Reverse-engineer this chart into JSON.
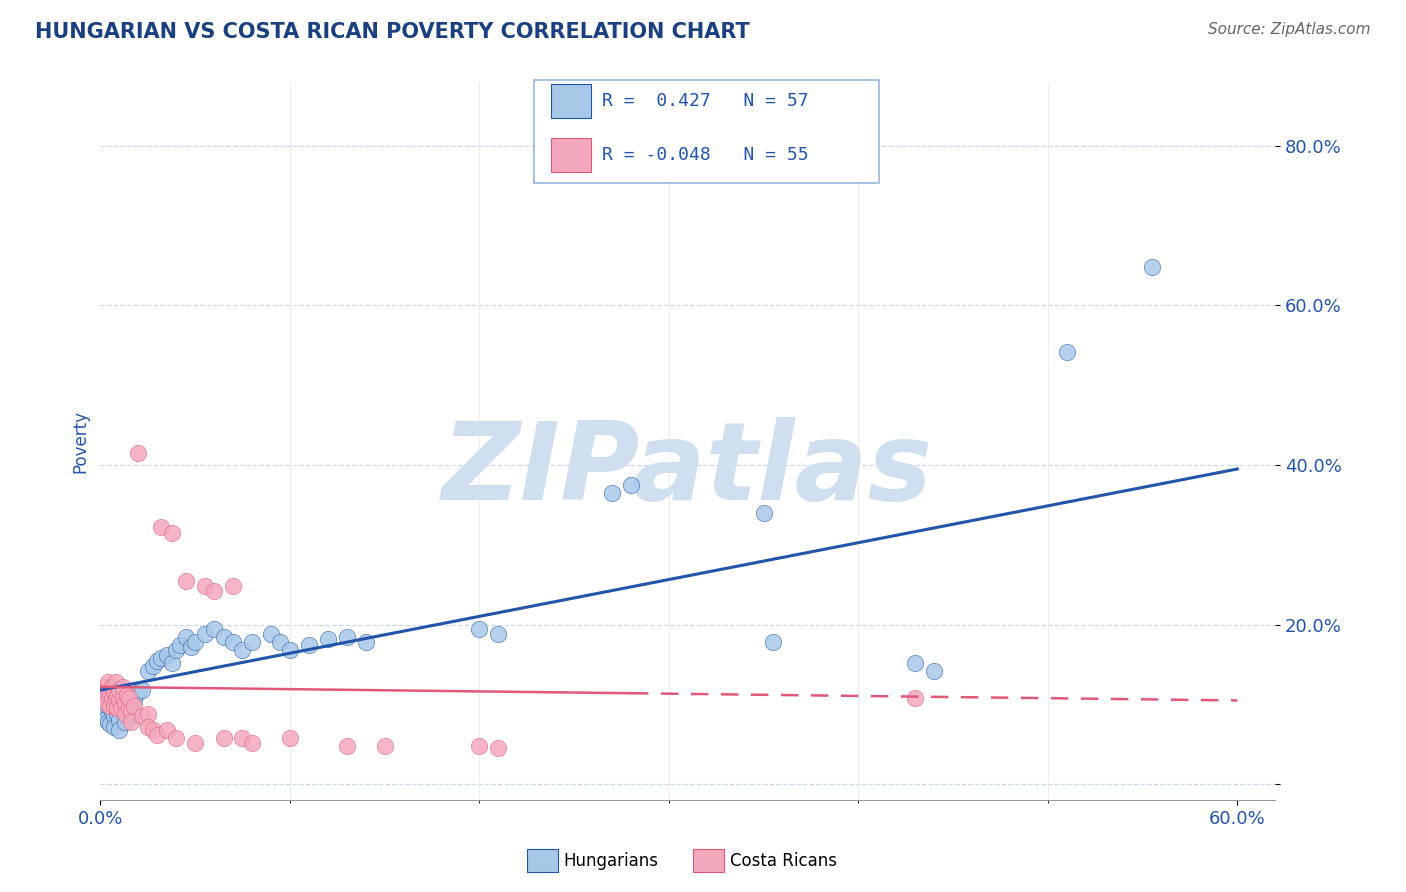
{
  "title": "HUNGARIAN VS COSTA RICAN POVERTY CORRELATION CHART",
  "source_text": "Source: ZipAtlas.com",
  "ylabel": "Poverty",
  "xlim": [
    0.0,
    0.62
  ],
  "ylim": [
    -0.02,
    0.88
  ],
  "yticks": [
    0.0,
    0.2,
    0.4,
    0.6,
    0.8
  ],
  "ytick_labels": [
    "",
    "20.0%",
    "40.0%",
    "60.0%",
    "80.0%"
  ],
  "xtick_labels": [
    "0.0%",
    "60.0%"
  ],
  "xtick_positions": [
    0.0,
    0.6
  ],
  "color_hungarian": "#a8c8e8",
  "color_costa_rican": "#f4a8bc",
  "color_trend_hungarian": "#2255aa",
  "color_trend_costa_rican": "#e05878",
  "watermark": "ZIPatlas",
  "watermark_color": "#d0dff0",
  "title_color": "#1a4080",
  "axis_label_color": "#2255aa",
  "tick_color": "#2255aa",
  "grid_color": "#c8d8ee",
  "trend_h_x0": 0.0,
  "trend_h_y0": 0.118,
  "trend_h_x1": 0.6,
  "trend_h_y1": 0.395,
  "trend_c_x0": 0.0,
  "trend_c_y0": 0.122,
  "trend_c_x1": 0.6,
  "trend_c_y1": 0.105,
  "trend_c_solid_end": 0.28,
  "hungarian_points": [
    [
      0.001,
      0.095
    ],
    [
      0.002,
      0.1
    ],
    [
      0.002,
      0.088
    ],
    [
      0.003,
      0.092
    ],
    [
      0.003,
      0.082
    ],
    [
      0.004,
      0.098
    ],
    [
      0.004,
      0.078
    ],
    [
      0.005,
      0.105
    ],
    [
      0.005,
      0.075
    ],
    [
      0.006,
      0.09
    ],
    [
      0.007,
      0.085
    ],
    [
      0.007,
      0.072
    ],
    [
      0.008,
      0.095
    ],
    [
      0.009,
      0.088
    ],
    [
      0.01,
      0.08
    ],
    [
      0.01,
      0.068
    ],
    [
      0.012,
      0.092
    ],
    [
      0.013,
      0.078
    ],
    [
      0.015,
      0.098
    ],
    [
      0.016,
      0.085
    ],
    [
      0.018,
      0.105
    ],
    [
      0.02,
      0.115
    ],
    [
      0.022,
      0.118
    ],
    [
      0.025,
      0.142
    ],
    [
      0.028,
      0.148
    ],
    [
      0.03,
      0.155
    ],
    [
      0.032,
      0.158
    ],
    [
      0.035,
      0.162
    ],
    [
      0.038,
      0.152
    ],
    [
      0.04,
      0.168
    ],
    [
      0.042,
      0.175
    ],
    [
      0.045,
      0.185
    ],
    [
      0.048,
      0.172
    ],
    [
      0.05,
      0.178
    ],
    [
      0.055,
      0.188
    ],
    [
      0.06,
      0.195
    ],
    [
      0.065,
      0.185
    ],
    [
      0.07,
      0.178
    ],
    [
      0.075,
      0.168
    ],
    [
      0.08,
      0.178
    ],
    [
      0.09,
      0.188
    ],
    [
      0.095,
      0.178
    ],
    [
      0.1,
      0.168
    ],
    [
      0.11,
      0.175
    ],
    [
      0.12,
      0.182
    ],
    [
      0.13,
      0.185
    ],
    [
      0.14,
      0.178
    ],
    [
      0.2,
      0.195
    ],
    [
      0.21,
      0.188
    ],
    [
      0.27,
      0.365
    ],
    [
      0.28,
      0.375
    ],
    [
      0.35,
      0.34
    ],
    [
      0.355,
      0.178
    ],
    [
      0.43,
      0.152
    ],
    [
      0.44,
      0.142
    ],
    [
      0.51,
      0.542
    ],
    [
      0.555,
      0.648
    ]
  ],
  "costa_rican_points": [
    [
      0.001,
      0.118
    ],
    [
      0.002,
      0.122
    ],
    [
      0.002,
      0.108
    ],
    [
      0.003,
      0.115
    ],
    [
      0.003,
      0.102
    ],
    [
      0.004,
      0.118
    ],
    [
      0.004,
      0.128
    ],
    [
      0.005,
      0.112
    ],
    [
      0.005,
      0.098
    ],
    [
      0.006,
      0.108
    ],
    [
      0.006,
      0.122
    ],
    [
      0.007,
      0.115
    ],
    [
      0.007,
      0.098
    ],
    [
      0.008,
      0.108
    ],
    [
      0.008,
      0.128
    ],
    [
      0.009,
      0.112
    ],
    [
      0.009,
      0.095
    ],
    [
      0.01,
      0.105
    ],
    [
      0.01,
      0.118
    ],
    [
      0.011,
      0.095
    ],
    [
      0.012,
      0.108
    ],
    [
      0.012,
      0.122
    ],
    [
      0.013,
      0.102
    ],
    [
      0.013,
      0.088
    ],
    [
      0.014,
      0.112
    ],
    [
      0.015,
      0.095
    ],
    [
      0.015,
      0.108
    ],
    [
      0.016,
      0.092
    ],
    [
      0.016,
      0.078
    ],
    [
      0.018,
      0.098
    ],
    [
      0.02,
      0.415
    ],
    [
      0.022,
      0.085
    ],
    [
      0.025,
      0.088
    ],
    [
      0.025,
      0.072
    ],
    [
      0.028,
      0.068
    ],
    [
      0.03,
      0.062
    ],
    [
      0.032,
      0.322
    ],
    [
      0.035,
      0.068
    ],
    [
      0.038,
      0.315
    ],
    [
      0.04,
      0.058
    ],
    [
      0.045,
      0.255
    ],
    [
      0.05,
      0.052
    ],
    [
      0.055,
      0.248
    ],
    [
      0.06,
      0.242
    ],
    [
      0.065,
      0.058
    ],
    [
      0.07,
      0.248
    ],
    [
      0.075,
      0.058
    ],
    [
      0.08,
      0.052
    ],
    [
      0.1,
      0.058
    ],
    [
      0.13,
      0.048
    ],
    [
      0.15,
      0.048
    ],
    [
      0.2,
      0.048
    ],
    [
      0.21,
      0.045
    ],
    [
      0.43,
      0.108
    ]
  ]
}
